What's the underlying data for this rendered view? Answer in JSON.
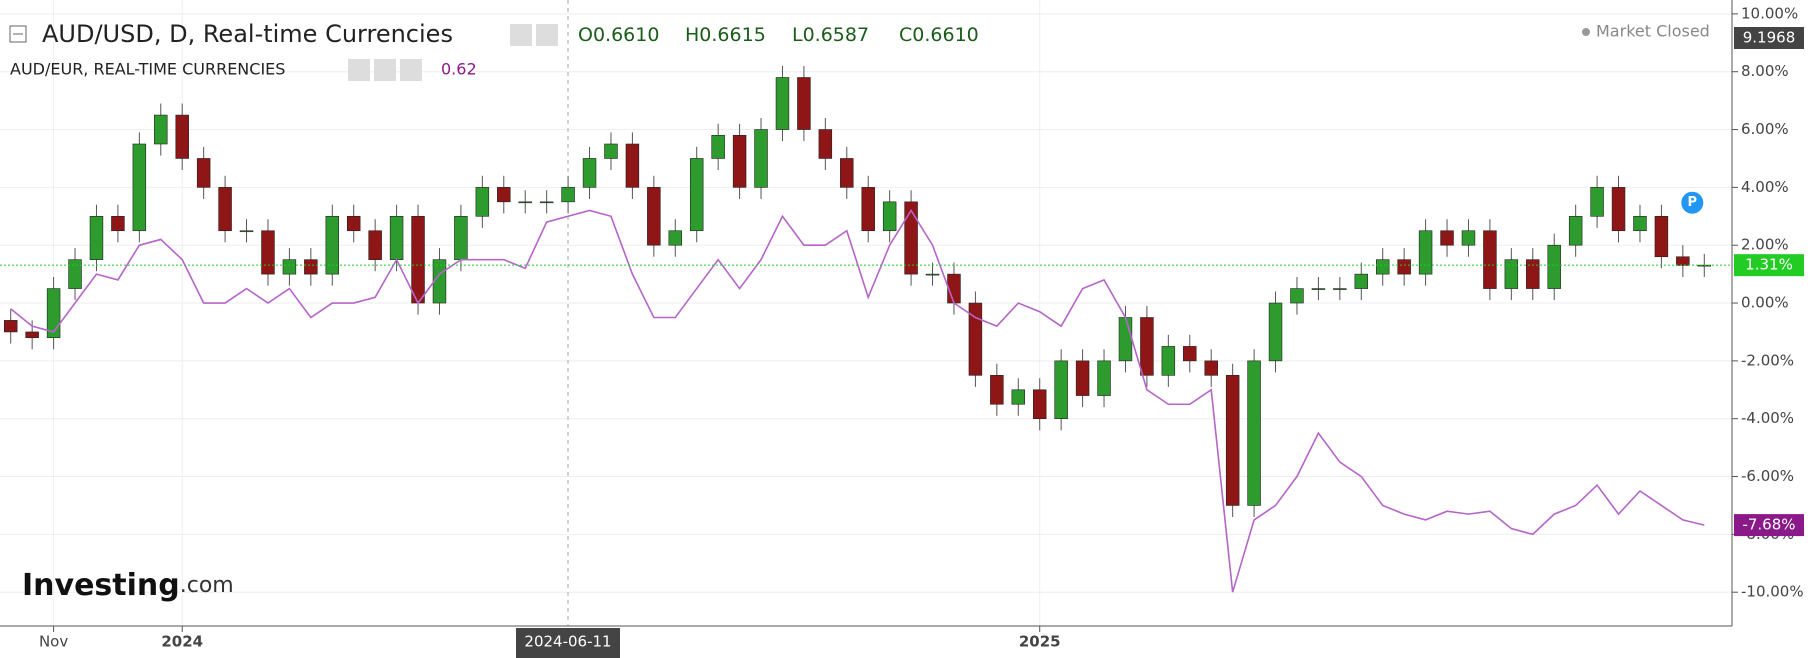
{
  "chart_data": {
    "type": "candlestick",
    "title": "AUD/USD, D, Real-time Currencies",
    "ohlc": [
      {
        "label": "O",
        "value": "0.6610"
      },
      {
        "label": "H",
        "value": "0.6615"
      },
      {
        "label": "L",
        "value": "0.6587"
      },
      {
        "label": "C",
        "value": "0.6610"
      }
    ],
    "status": "Market Closed",
    "axis_badge": "9.1968",
    "crosshair": "2024-06-11",
    "badge": "P",
    "brand": "Investing",
    "brand_suffix": ".com",
    "categories": [
      null,
      null,
      "Nov",
      null,
      null,
      null,
      null,
      null,
      "2024",
      null,
      null,
      null,
      null,
      null,
      null,
      null,
      null,
      null,
      null,
      null,
      null,
      null,
      null,
      null,
      null,
      null,
      null,
      null,
      null,
      null,
      null,
      null,
      null,
      null,
      null,
      null,
      null,
      null,
      null,
      null,
      null,
      null,
      null,
      null,
      null,
      null,
      null,
      null,
      "2025",
      null,
      null,
      null,
      null,
      null,
      null,
      null,
      null,
      null,
      null,
      null,
      null,
      null,
      null,
      null,
      null,
      null,
      null,
      null,
      null,
      null,
      null,
      null,
      null,
      null,
      null,
      null,
      null,
      null,
      null,
      null
    ],
    "ylim": [
      -11.1,
      10.48
    ],
    "yticks": [
      {
        "value": -10,
        "label": "-10.00%"
      },
      {
        "value": -8,
        "label": "-8.00%"
      },
      {
        "value": -6,
        "label": "-6.00%"
      },
      {
        "value": -4,
        "label": "-4.00%"
      },
      {
        "value": -2,
        "label": "-2.00%"
      },
      {
        "value": 0,
        "label": "0.00%"
      },
      {
        "value": 2,
        "label": "2.00%"
      },
      {
        "value": 4,
        "label": "4.00%"
      },
      {
        "value": 6,
        "label": "6.00%"
      },
      {
        "value": 8,
        "label": "8.00%"
      },
      {
        "value": 10,
        "label": "10.00%"
      }
    ],
    "grid": true,
    "series": [
      {
        "type": "candlestick",
        "up_color": "#2e9b2e",
        "down_color": "#8e1616",
        "last_label": "1.31%",
        "last_color": "#22cc22",
        "open": [
          -0.6,
          -1.0,
          -1.2,
          0.5,
          1.5,
          3.0,
          2.5,
          5.5,
          6.5,
          5.0,
          4.0,
          2.5,
          2.5,
          1.0,
          1.5,
          1.0,
          3.0,
          2.5,
          1.5,
          3.0,
          0.0,
          1.5,
          3.0,
          4.0,
          3.5,
          3.5,
          3.5,
          4.0,
          5.0,
          5.5,
          4.0,
          2.0,
          2.5,
          5.0,
          5.8,
          4.0,
          6.0,
          7.8,
          6.0,
          5.0,
          4.0,
          2.5,
          3.5,
          1.0,
          1.0,
          0.0,
          -2.5,
          -3.5,
          -3.0,
          -4.0,
          -2.0,
          -3.2,
          -2.0,
          -0.5,
          -2.5,
          -1.5,
          -2.0,
          -2.5,
          -7.0,
          -2.0,
          0.0,
          0.5,
          0.5,
          0.5,
          1.0,
          1.5,
          1.0,
          2.5,
          2.0,
          2.5,
          0.5,
          1.5,
          0.5,
          2.0,
          3.0,
          4.0,
          2.5,
          3.0,
          1.6,
          1.3
        ],
        "high": [
          -0.2,
          -0.6,
          0.9,
          1.9,
          3.4,
          3.4,
          5.9,
          6.9,
          6.9,
          5.4,
          4.4,
          2.9,
          2.9,
          1.9,
          1.9,
          3.4,
          3.4,
          2.9,
          3.4,
          3.4,
          1.9,
          3.4,
          4.4,
          4.4,
          3.9,
          3.9,
          4.4,
          5.4,
          5.9,
          5.9,
          4.4,
          2.9,
          5.4,
          6.2,
          6.2,
          6.4,
          8.2,
          8.2,
          6.4,
          5.4,
          4.4,
          3.9,
          3.9,
          1.4,
          1.4,
          0.4,
          -2.1,
          -2.6,
          -2.6,
          -1.6,
          -1.6,
          -1.6,
          -0.1,
          -0.1,
          -1.1,
          -1.1,
          -1.6,
          -2.1,
          -1.6,
          0.4,
          0.9,
          0.9,
          0.9,
          1.4,
          1.9,
          1.9,
          2.9,
          2.9,
          2.9,
          2.9,
          1.9,
          1.9,
          2.4,
          3.4,
          4.4,
          4.4,
          3.4,
          3.4,
          2.0,
          1.7
        ],
        "low": [
          -1.4,
          -1.6,
          -1.6,
          0.1,
          1.1,
          2.1,
          2.1,
          5.1,
          4.6,
          3.6,
          2.1,
          2.1,
          0.6,
          0.6,
          0.6,
          0.6,
          2.1,
          1.1,
          1.1,
          -0.4,
          -0.4,
          1.1,
          2.6,
          3.1,
          3.1,
          3.1,
          3.1,
          3.6,
          4.6,
          3.6,
          1.6,
          1.6,
          2.1,
          4.6,
          3.6,
          3.6,
          5.6,
          5.6,
          4.6,
          3.6,
          2.1,
          2.1,
          0.6,
          0.6,
          -0.4,
          -2.9,
          -3.9,
          -3.9,
          -4.4,
          -4.4,
          -3.6,
          -3.6,
          -2.4,
          -2.9,
          -2.9,
          -2.4,
          -2.9,
          -7.4,
          -7.4,
          -2.4,
          -0.4,
          0.1,
          0.1,
          0.1,
          0.6,
          0.6,
          0.6,
          1.6,
          1.6,
          0.1,
          0.1,
          0.1,
          0.1,
          1.6,
          2.6,
          2.1,
          2.1,
          1.2,
          0.9,
          0.9
        ],
        "close": [
          -1.0,
          -1.2,
          0.5,
          1.5,
          3.0,
          2.5,
          5.5,
          6.5,
          5.0,
          4.0,
          2.5,
          2.5,
          1.0,
          1.5,
          1.0,
          3.0,
          2.5,
          1.5,
          3.0,
          0.0,
          1.5,
          3.0,
          4.0,
          3.5,
          3.5,
          3.5,
          4.0,
          5.0,
          5.5,
          4.0,
          2.0,
          2.5,
          5.0,
          5.8,
          4.0,
          6.0,
          7.8,
          6.0,
          5.0,
          4.0,
          2.5,
          3.5,
          1.0,
          1.0,
          0.0,
          -2.5,
          -3.5,
          -3.0,
          -4.0,
          -2.0,
          -3.2,
          -2.0,
          -0.5,
          -2.5,
          -1.5,
          -2.0,
          -2.5,
          -7.0,
          -2.0,
          0.0,
          0.5,
          0.5,
          0.5,
          1.0,
          1.5,
          1.0,
          2.5,
          2.0,
          2.5,
          0.5,
          1.5,
          0.5,
          2.0,
          3.0,
          4.0,
          2.5,
          3.0,
          1.6,
          1.3,
          1.31
        ]
      },
      {
        "type": "line",
        "name": "AUD/EUR, REAL-TIME CURRENCIES",
        "header_value": "0.62",
        "color": "#b565c8",
        "last_label": "-7.68%",
        "last_color": "#8a1a8a",
        "values": [
          -0.2,
          -0.8,
          -1.0,
          0.0,
          1.0,
          0.8,
          2.0,
          2.2,
          1.5,
          0.0,
          0.0,
          0.5,
          0.0,
          0.5,
          -0.5,
          0.0,
          0.0,
          0.2,
          1.5,
          0.0,
          1.0,
          1.5,
          1.5,
          1.5,
          1.2,
          2.8,
          3.0,
          3.2,
          3.0,
          1.0,
          -0.5,
          -0.5,
          0.5,
          1.5,
          0.5,
          1.5,
          3.0,
          2.0,
          2.0,
          2.5,
          0.2,
          2.0,
          3.2,
          2.0,
          0.0,
          -0.5,
          -0.8,
          0.0,
          -0.3,
          -0.8,
          0.5,
          0.8,
          -0.5,
          -3.0,
          -3.5,
          -3.5,
          -3.0,
          -10.0,
          -7.5,
          -7.0,
          -6.0,
          -4.5,
          -5.5,
          -6.0,
          -7.0,
          -7.3,
          -7.5,
          -7.2,
          -7.3,
          -7.2,
          -7.8,
          -8.0,
          -7.3,
          -7.0,
          -6.3,
          -7.3,
          -6.5,
          -7.0,
          -7.5,
          -7.68
        ]
      }
    ]
  }
}
